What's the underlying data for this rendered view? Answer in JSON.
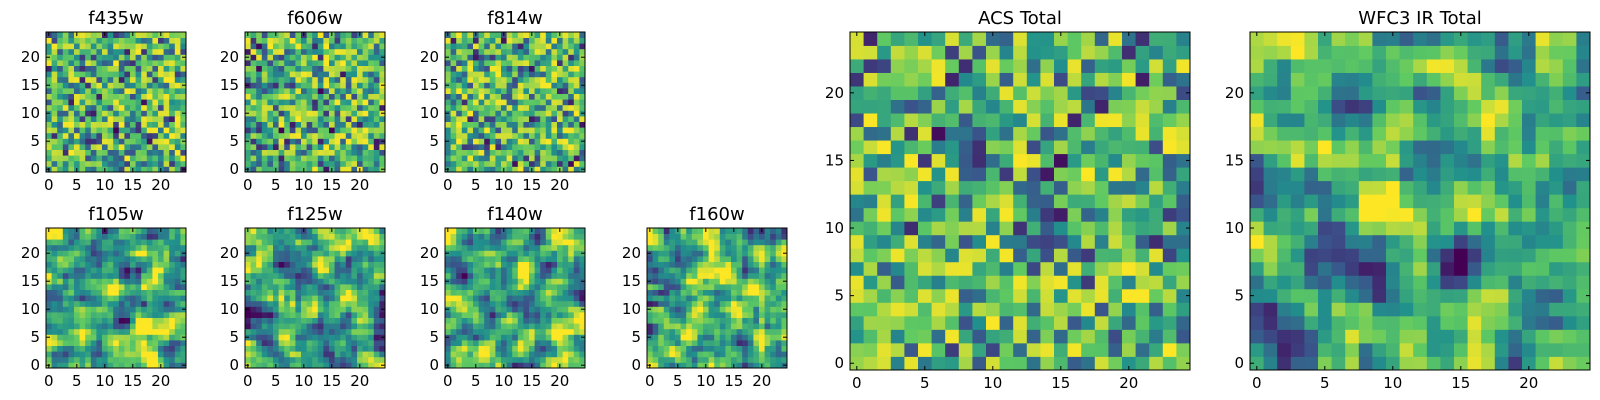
{
  "colormap": [
    "#440154",
    "#3b528b",
    "#21918c",
    "#5ec962",
    "#fde725"
  ],
  "chart_data": [
    {
      "type": "heatmap",
      "title": "f435w",
      "xticks": [
        "0",
        "5",
        "10",
        "15",
        "20"
      ],
      "yticks": [
        "0",
        "5",
        "10",
        "15",
        "20"
      ],
      "xlim": [
        -0.5,
        24.5
      ],
      "ylim": [
        -0.5,
        24.5
      ],
      "grid_size": [
        25,
        25
      ],
      "grid": false
    },
    {
      "type": "heatmap",
      "title": "f606w",
      "xticks": [
        "0",
        "5",
        "10",
        "15",
        "20"
      ],
      "yticks": [
        "0",
        "5",
        "10",
        "15",
        "20"
      ],
      "xlim": [
        -0.5,
        24.5
      ],
      "ylim": [
        -0.5,
        24.5
      ],
      "grid_size": [
        25,
        25
      ],
      "grid": false
    },
    {
      "type": "heatmap",
      "title": "f814w",
      "xticks": [
        "0",
        "5",
        "10",
        "15",
        "20"
      ],
      "yticks": [
        "0",
        "5",
        "10",
        "15",
        "20"
      ],
      "xlim": [
        -0.5,
        24.5
      ],
      "ylim": [
        -0.5,
        24.5
      ],
      "grid_size": [
        25,
        25
      ],
      "grid": false
    },
    {
      "type": "heatmap",
      "title": "f105w",
      "xticks": [
        "0",
        "5",
        "10",
        "15",
        "20"
      ],
      "yticks": [
        "0",
        "5",
        "10",
        "15",
        "20"
      ],
      "xlim": [
        -0.5,
        24.5
      ],
      "ylim": [
        -0.5,
        24.5
      ],
      "grid_size": [
        25,
        25
      ],
      "grid": false
    },
    {
      "type": "heatmap",
      "title": "f125w",
      "xticks": [
        "0",
        "5",
        "10",
        "15",
        "20"
      ],
      "yticks": [
        "0",
        "5",
        "10",
        "15",
        "20"
      ],
      "xlim": [
        -0.5,
        24.5
      ],
      "ylim": [
        -0.5,
        24.5
      ],
      "grid_size": [
        25,
        25
      ],
      "grid": false
    },
    {
      "type": "heatmap",
      "title": "f140w",
      "xticks": [
        "0",
        "5",
        "10",
        "15",
        "20"
      ],
      "yticks": [
        "0",
        "5",
        "10",
        "15",
        "20"
      ],
      "xlim": [
        -0.5,
        24.5
      ],
      "ylim": [
        -0.5,
        24.5
      ],
      "grid_size": [
        25,
        25
      ],
      "grid": false
    },
    {
      "type": "heatmap",
      "title": "f160w",
      "xticks": [
        "0",
        "5",
        "10",
        "15",
        "20"
      ],
      "yticks": [
        "0",
        "5",
        "10",
        "15",
        "20"
      ],
      "xlim": [
        -0.5,
        24.5
      ],
      "ylim": [
        -0.5,
        24.5
      ],
      "grid_size": [
        25,
        25
      ],
      "grid": false
    },
    {
      "type": "heatmap",
      "title": "ACS Total",
      "xticks": [
        "0",
        "5",
        "10",
        "15",
        "20"
      ],
      "yticks": [
        "0",
        "5",
        "10",
        "15",
        "20"
      ],
      "xlim": [
        -0.5,
        24.5
      ],
      "ylim": [
        -0.5,
        24.5
      ],
      "grid_size": [
        25,
        25
      ],
      "grid": false
    },
    {
      "type": "heatmap",
      "title": "WFC3 IR Total",
      "xticks": [
        "0",
        "5",
        "10",
        "15",
        "20"
      ],
      "yticks": [
        "0",
        "5",
        "10",
        "15",
        "20"
      ],
      "xlim": [
        -0.5,
        24.5
      ],
      "ylim": [
        -0.5,
        24.5
      ],
      "grid_size": [
        25,
        25
      ],
      "grid": false
    }
  ]
}
